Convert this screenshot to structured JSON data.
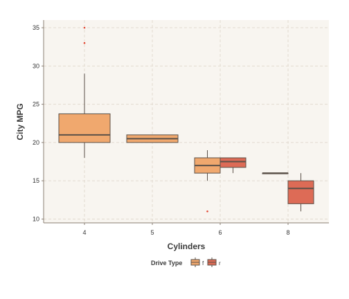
{
  "chart_data": {
    "type": "boxplot",
    "title": "",
    "xlabel": "Cylinders",
    "ylabel": "City MPG",
    "categories": [
      "4",
      "5",
      "6",
      "8"
    ],
    "ylim": [
      9.5,
      36
    ],
    "yticks": [
      10,
      15,
      20,
      25,
      30,
      35
    ],
    "grid": true,
    "legend": {
      "title": "Drive Type",
      "position": "bottom",
      "entries": [
        {
          "key": "f",
          "label": "f",
          "color": "#f0a86e"
        },
        {
          "key": "r",
          "label": "r",
          "color": "#dd6b56"
        }
      ]
    },
    "series": [
      {
        "key": "f",
        "category": "4",
        "min": 18,
        "q1": 20,
        "median": 21,
        "q3": 23.75,
        "max": 29,
        "outliers": [
          33,
          35
        ]
      },
      {
        "key": "f",
        "category": "5",
        "min": 20,
        "q1": 20,
        "median": 20.5,
        "q3": 21,
        "max": 21,
        "outliers": []
      },
      {
        "key": "f",
        "category": "6",
        "min": 15,
        "q1": 16,
        "median": 17,
        "q3": 18,
        "max": 19,
        "outliers": [
          11
        ]
      },
      {
        "key": "r",
        "category": "6",
        "min": 16,
        "q1": 16.75,
        "median": 17.5,
        "q3": 18,
        "max": 18,
        "outliers": []
      },
      {
        "key": "f",
        "category": "8",
        "min": 16,
        "q1": 16,
        "median": 16,
        "q3": 16,
        "max": 16,
        "outliers": []
      },
      {
        "key": "r",
        "category": "8",
        "min": 11,
        "q1": 12,
        "median": 14,
        "q3": 15,
        "max": 16,
        "outliers": []
      }
    ],
    "colors": {
      "panel": "#f8f5f0",
      "grid": "#e2dad0",
      "axis": "#8a7e72",
      "box_stroke": "#5a5048",
      "outlier": "#e0452e"
    }
  }
}
